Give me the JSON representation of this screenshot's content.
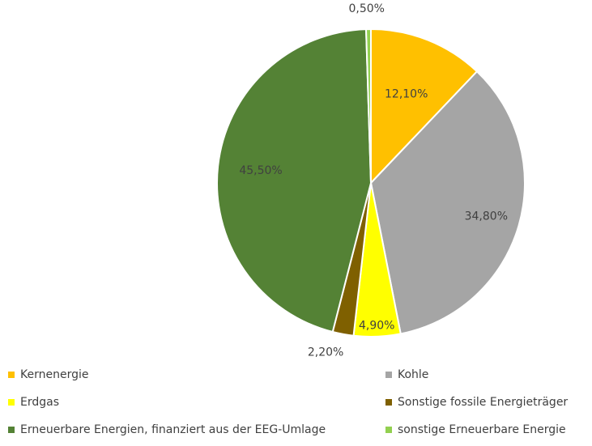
{
  "chart_data": {
    "type": "pie",
    "title": "",
    "categories": [
      "Kernenergie",
      "Kohle",
      "Erdgas",
      "Sonstige fossile Energieträger",
      "Erneuerbare Energien, finanziert aus der EEG-Umlage",
      "sonstige Erneuerbare Energie"
    ],
    "values": [
      12.1,
      34.8,
      4.9,
      2.2,
      45.5,
      0.5
    ],
    "value_labels": [
      "12,10%",
      "34,80%",
      "4,90%",
      "2,20%",
      "45,50%",
      "0,50%"
    ],
    "colors": [
      "#ffc000",
      "#a5a5a5",
      "#ffff00",
      "#7f6000",
      "#548235",
      "#92d050"
    ],
    "start_angle_deg": 0,
    "direction": "clockwise",
    "legend_placement": "bottom"
  }
}
